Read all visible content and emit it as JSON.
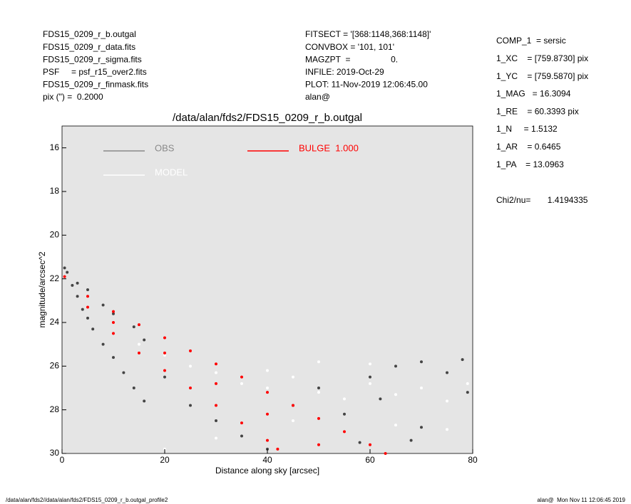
{
  "chart_data": {
    "type": "scatter",
    "title": "/data/alan/fds2/FDS15_0209_r_b.outgal",
    "x_label": "Distance along sky [arcsec]",
    "y_label": "magnitude/arcsec^2",
    "xlim": [
      0,
      80
    ],
    "xticks": [
      0,
      20,
      40,
      60,
      80
    ],
    "ylim": [
      30,
      15
    ],
    "yticks": [
      16,
      18,
      20,
      22,
      24,
      26,
      28,
      30
    ],
    "background": "#e5e5e5",
    "annotations": {
      "left": [
        "FDS15_0209_r_b.outgal",
        "FDS15_0209_r_data.fits",
        "FDS15_0209_r_sigma.fits",
        "PSF     = psf_r15_over2.fits",
        "FDS15_0209_r_finmask.fits",
        "pix (\") =  0.2000"
      ],
      "middle": [
        "FITSECT = '[368:1148,368:1148]'",
        "CONVBOX = '101, 101'",
        "MAGZPT  =                 0.",
        "INFILE: 2019-Oct-29",
        "PLOT: 11-Nov-2019 12:06:45.00",
        "alan@"
      ],
      "right": [
        "COMP_1  = sersic",
        "1_XC    = [759.8730] pix",
        "1_YC    = [759.5870] pix",
        "1_MAG   = 16.3094",
        "1_RE    = 60.3393 pix",
        "1_N     = 1.5132",
        "1_AR    = 0.6465",
        "1_PA    = 13.0963"
      ],
      "chi2": "Chi2/nu=       1.4194335",
      "footer_left": "/data/alan/fds2//data/alan/fds2/FDS15_0209_r_b.outgal_profile2",
      "footer_right": "alan@  Mon Nov 11 12:06:45 2019"
    },
    "series": [
      {
        "name": "OBS",
        "color": "#444444",
        "legend_color": "#8a8a8a",
        "x": [
          0.5,
          1,
          2,
          3,
          4,
          5,
          6,
          8,
          10,
          12,
          14,
          16,
          3,
          5,
          8,
          10,
          14,
          16,
          20,
          25,
          30,
          35,
          45,
          50,
          55,
          60,
          62,
          65,
          70,
          75,
          79,
          78,
          70,
          58,
          40,
          68
        ],
        "values": [
          21.5,
          21.7,
          22.3,
          22.8,
          23.4,
          23.8,
          24.3,
          25,
          25.6,
          26.3,
          27,
          27.6,
          22.2,
          22.5,
          23.2,
          23.6,
          24.2,
          24.8,
          26.5,
          27.8,
          28.5,
          29.2,
          27.8,
          27,
          28.2,
          26.5,
          27.5,
          26,
          28.8,
          26.3,
          27.2,
          25.7,
          25.8,
          29.5,
          29.8,
          29.4
        ]
      },
      {
        "name": "MODEL",
        "color": "#ffffff",
        "legend_color": "#ffffff",
        "x": [
          15,
          20,
          25,
          30,
          35,
          40,
          45,
          50,
          55,
          60,
          65,
          70,
          75,
          79,
          45,
          55,
          65,
          75,
          30,
          50,
          60,
          20,
          40
        ],
        "values": [
          25,
          25.5,
          26,
          26.3,
          26.8,
          27,
          26.5,
          27.2,
          27.5,
          26.8,
          27.3,
          27,
          27.6,
          26.8,
          28.5,
          29,
          28.7,
          28.9,
          29.3,
          25.8,
          25.9,
          29.8,
          26.2
        ]
      },
      {
        "name": "BULGE  1.000",
        "color": "#ff0000",
        "legend_color": "#ff0000",
        "x": [
          0.5,
          5,
          10,
          15,
          20,
          25,
          30,
          35,
          40,
          45,
          50,
          55,
          60,
          63,
          5,
          10,
          15,
          20,
          25,
          30,
          35,
          40,
          42,
          10,
          20,
          30,
          40,
          50
        ],
        "values": [
          21.9,
          22.8,
          23.5,
          24.1,
          24.7,
          25.3,
          25.9,
          26.5,
          27.2,
          27.8,
          28.4,
          29,
          29.6,
          30,
          23.3,
          24.5,
          25.4,
          26.2,
          27,
          27.8,
          28.6,
          29.4,
          29.8,
          24,
          25.4,
          26.8,
          28.2,
          29.6
        ]
      }
    ]
  }
}
